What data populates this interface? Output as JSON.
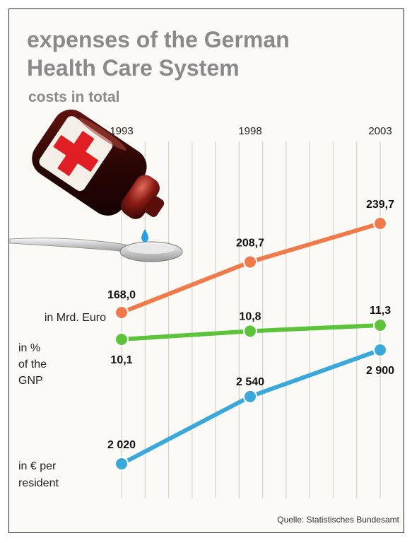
{
  "title_line1": "expenses of the German",
  "title_line2": "Health Care System",
  "subtitle": "costs in total",
  "source": "Quelle: Statistisches Bundesamt",
  "colors": {
    "euro": "#f07a4a",
    "gnp": "#5cc33a",
    "resident": "#3aa8da",
    "grid": "#d8d3c7"
  },
  "icons": [
    "medicine-bottle-icon",
    "spoon-icon",
    "drop-icon"
  ],
  "chart_data": {
    "type": "line",
    "x": [
      "1993",
      "1998",
      "2003"
    ],
    "series": [
      {
        "name": "in Mrd. Euro",
        "values": [
          168.0,
          208.7,
          239.7
        ],
        "labels": [
          "168,0",
          "208,7",
          "239,7"
        ]
      },
      {
        "name": "in % of the GNP",
        "values": [
          10.1,
          10.8,
          11.3
        ],
        "labels": [
          "10,1",
          "10,8",
          "11,3"
        ]
      },
      {
        "name": "in € per resident",
        "values": [
          2020,
          2540,
          2900
        ],
        "labels": [
          "2 020",
          "2 540",
          "2 900"
        ]
      }
    ],
    "grid": true
  }
}
